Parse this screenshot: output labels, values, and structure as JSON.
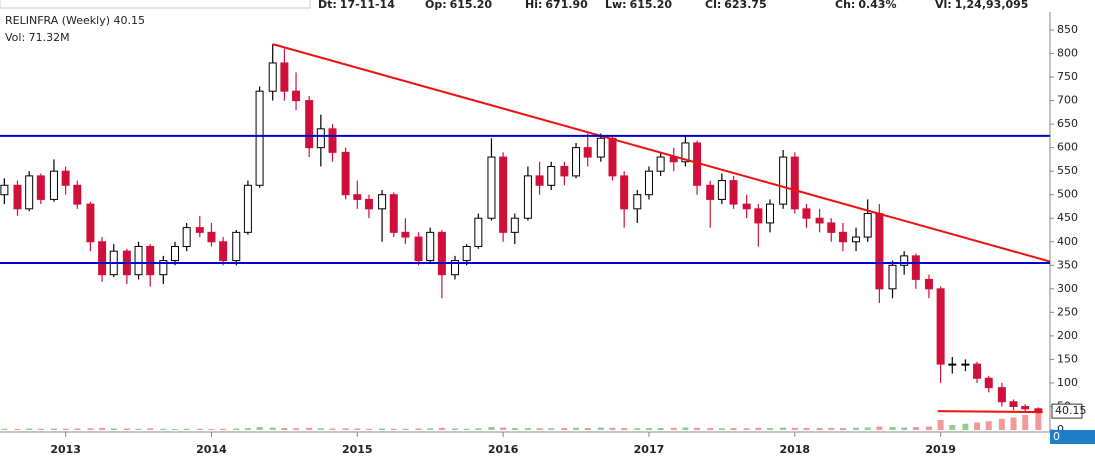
{
  "header": [
    {
      "label": "Dt:",
      "value": "17-11-14"
    },
    {
      "label": "Op:",
      "value": "615.20"
    },
    {
      "label": "Hi:",
      "value": "671.90"
    },
    {
      "label": "Lw:",
      "value": "615.20"
    },
    {
      "label": "Cl:",
      "value": "623.75"
    },
    {
      "label": "Ch:",
      "value": "0.43%"
    },
    {
      "label": "Vl:",
      "value": "1,24,93,095"
    }
  ],
  "chart_data": {
    "type": "candlestick",
    "title": "RELINFRA (Weekly) 40.15",
    "subtitle": "Vol: 71.32M",
    "x": [
      2012.58,
      2012.67,
      2012.75,
      2012.83,
      2012.92,
      2013.0,
      2013.08,
      2013.17,
      2013.25,
      2013.33,
      2013.42,
      2013.5,
      2013.58,
      2013.67,
      2013.75,
      2013.83,
      2013.92,
      2014.0,
      2014.08,
      2014.17,
      2014.25,
      2014.33,
      2014.42,
      2014.5,
      2014.58,
      2014.67,
      2014.75,
      2014.83,
      2014.92,
      2015.0,
      2015.08,
      2015.17,
      2015.25,
      2015.33,
      2015.42,
      2015.5,
      2015.58,
      2015.67,
      2015.75,
      2015.83,
      2015.92,
      2016.0,
      2016.08,
      2016.17,
      2016.25,
      2016.33,
      2016.42,
      2016.5,
      2016.58,
      2016.67,
      2016.75,
      2016.83,
      2016.92,
      2017.0,
      2017.08,
      2017.17,
      2017.25,
      2017.33,
      2017.42,
      2017.5,
      2017.58,
      2017.67,
      2017.75,
      2017.83,
      2017.92,
      2018.0,
      2018.08,
      2018.17,
      2018.25,
      2018.33,
      2018.42,
      2018.5,
      2018.58,
      2018.67,
      2018.75,
      2018.83,
      2018.92,
      2019.0,
      2019.08,
      2019.17,
      2019.25,
      2019.33,
      2019.42,
      2019.5,
      2019.58,
      2019.67
    ],
    "open": [
      500,
      520,
      470,
      540,
      490,
      550,
      520,
      480,
      400,
      330,
      380,
      330,
      390,
      330,
      360,
      390,
      430,
      420,
      400,
      360,
      420,
      520,
      720,
      780,
      720,
      700,
      600,
      640,
      590,
      500,
      490,
      470,
      500,
      420,
      410,
      360,
      420,
      330,
      360,
      390,
      450,
      580,
      420,
      450,
      540,
      520,
      560,
      540,
      600,
      580,
      620,
      540,
      470,
      500,
      550,
      580,
      570,
      610,
      520,
      490,
      530,
      480,
      470,
      440,
      480,
      580,
      470,
      450,
      440,
      420,
      400,
      410,
      460,
      300,
      350,
      370,
      320,
      300,
      140,
      140,
      140,
      110,
      90,
      60,
      50,
      45
    ],
    "high": [
      535,
      530,
      550,
      545,
      575,
      560,
      530,
      485,
      410,
      395,
      385,
      400,
      395,
      370,
      400,
      440,
      455,
      440,
      410,
      425,
      530,
      730,
      820,
      810,
      760,
      710,
      670,
      650,
      600,
      530,
      500,
      510,
      505,
      450,
      420,
      430,
      425,
      370,
      395,
      460,
      620,
      590,
      460,
      560,
      570,
      570,
      570,
      610,
      630,
      630,
      625,
      550,
      510,
      560,
      590,
      600,
      625,
      615,
      530,
      545,
      540,
      500,
      480,
      490,
      595,
      590,
      480,
      470,
      450,
      440,
      430,
      490,
      480,
      360,
      380,
      375,
      330,
      305,
      155,
      150,
      145,
      115,
      100,
      65,
      55,
      48
    ],
    "low": [
      480,
      455,
      465,
      480,
      485,
      500,
      470,
      380,
      315,
      325,
      310,
      320,
      305,
      310,
      350,
      380,
      410,
      390,
      350,
      350,
      415,
      515,
      700,
      700,
      680,
      580,
      560,
      570,
      490,
      470,
      450,
      400,
      410,
      395,
      350,
      355,
      280,
      320,
      350,
      385,
      445,
      400,
      395,
      445,
      500,
      510,
      520,
      535,
      560,
      570,
      530,
      430,
      440,
      490,
      540,
      550,
      560,
      500,
      430,
      480,
      470,
      450,
      390,
      420,
      470,
      460,
      430,
      420,
      400,
      380,
      380,
      400,
      270,
      280,
      330,
      300,
      280,
      100,
      120,
      125,
      100,
      80,
      50,
      42,
      38,
      35
    ],
    "close": [
      520,
      470,
      540,
      490,
      550,
      520,
      480,
      400,
      330,
      380,
      330,
      390,
      330,
      360,
      390,
      430,
      420,
      400,
      360,
      420,
      520,
      720,
      780,
      720,
      700,
      600,
      640,
      590,
      500,
      490,
      470,
      500,
      420,
      410,
      360,
      420,
      330,
      360,
      390,
      450,
      580,
      420,
      450,
      540,
      520,
      560,
      540,
      600,
      580,
      620,
      540,
      470,
      500,
      550,
      580,
      570,
      610,
      520,
      490,
      530,
      480,
      470,
      440,
      480,
      580,
      470,
      450,
      440,
      420,
      400,
      410,
      460,
      300,
      350,
      370,
      320,
      300,
      140,
      140,
      140,
      110,
      90,
      60,
      50,
      45,
      40.15
    ],
    "volume": [
      5,
      4,
      6,
      5,
      6,
      5,
      6,
      7,
      8,
      6,
      6,
      5,
      7,
      5,
      4,
      5,
      5,
      4,
      5,
      6,
      8,
      12,
      10,
      8,
      7,
      9,
      7,
      6,
      7,
      6,
      5,
      6,
      5,
      5,
      6,
      7,
      9,
      6,
      5,
      7,
      12,
      10,
      8,
      8,
      7,
      7,
      8,
      9,
      8,
      10,
      9,
      8,
      7,
      8,
      8,
      9,
      10,
      9,
      8,
      7,
      8,
      7,
      9,
      8,
      10,
      9,
      8,
      8,
      9,
      8,
      9,
      10,
      14,
      12,
      10,
      12,
      14,
      40,
      20,
      25,
      30,
      35,
      45,
      50,
      60,
      71.32
    ],
    "up_color": "#000000",
    "down_color": "#d0103a",
    "volume_up_color": "#8fcf8f",
    "volume_down_color": "#f29a9a",
    "xlim": [
      2012.55,
      2019.75
    ],
    "xticks": [
      2013,
      2014,
      2015,
      2016,
      2017,
      2018,
      2019
    ],
    "ylim": [
      0,
      850
    ],
    "yticks": [
      0,
      50,
      100,
      150,
      200,
      250,
      300,
      350,
      400,
      450,
      500,
      550,
      600,
      650,
      700,
      750,
      800,
      850
    ],
    "volume_ylim": [
      0,
      80
    ],
    "volume_ticks": [
      0
    ],
    "lines": [
      {
        "x": [
          2014.42,
          2019.75
        ],
        "y": [
          820,
          358
        ],
        "color": "#ee1111"
      },
      {
        "x": [
          2012.55,
          2019.75
        ],
        "y": [
          625,
          625
        ],
        "color": "#0000cc"
      },
      {
        "x": [
          2012.55,
          2019.75
        ],
        "y": [
          355,
          355
        ],
        "color": "#0000cc"
      },
      {
        "x": [
          2018.98,
          2019.7
        ],
        "y": [
          40,
          38
        ],
        "color": "#ee1111"
      }
    ]
  }
}
